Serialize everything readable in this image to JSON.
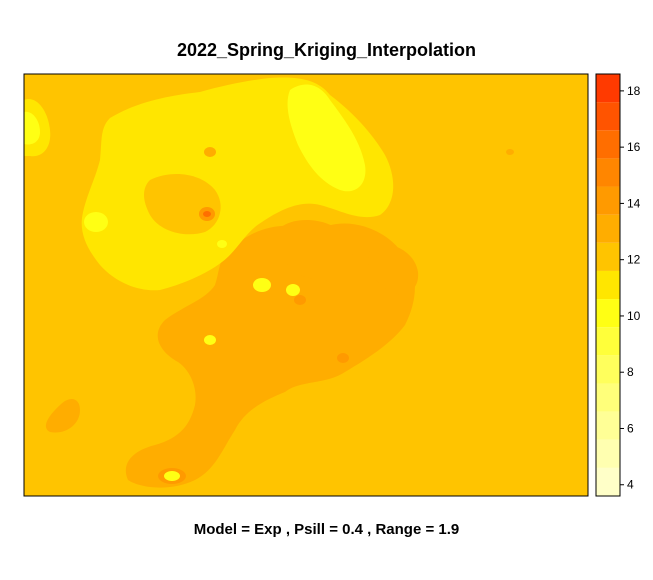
{
  "chart_data": {
    "type": "heatmap",
    "title": "2022_Spring_Kriging_Interpolation",
    "subtitle": "Model = Exp , Psill = 0.4 , Range = 1.9",
    "xlabel": "",
    "ylabel": "",
    "colorbar": {
      "range": [
        3.6,
        18.6
      ],
      "ticks": [
        4,
        6,
        8,
        10,
        12,
        14,
        16,
        18
      ],
      "tick_labels": [
        "4",
        "6",
        "8",
        "10",
        "12",
        "14",
        "16",
        "18"
      ],
      "levels": [
        3.6,
        4.6,
        5.6,
        6.6,
        7.6,
        8.6,
        9.6,
        10.6,
        11.6,
        12.6,
        13.6,
        14.6,
        15.6,
        16.6,
        17.6,
        18.6
      ],
      "colors": [
        "#FFFFC8",
        "#FFFFB0",
        "#FFFF96",
        "#FFFF7A",
        "#FFFF5C",
        "#FFFF3A",
        "#FFFF14",
        "#FFE600",
        "#FFC400",
        "#FFAD00",
        "#FF9A00",
        "#FF8600",
        "#FF6E00",
        "#FF5400",
        "#FF3A00"
      ]
    },
    "background_value": 12,
    "legend_position": "right",
    "grid": false
  }
}
